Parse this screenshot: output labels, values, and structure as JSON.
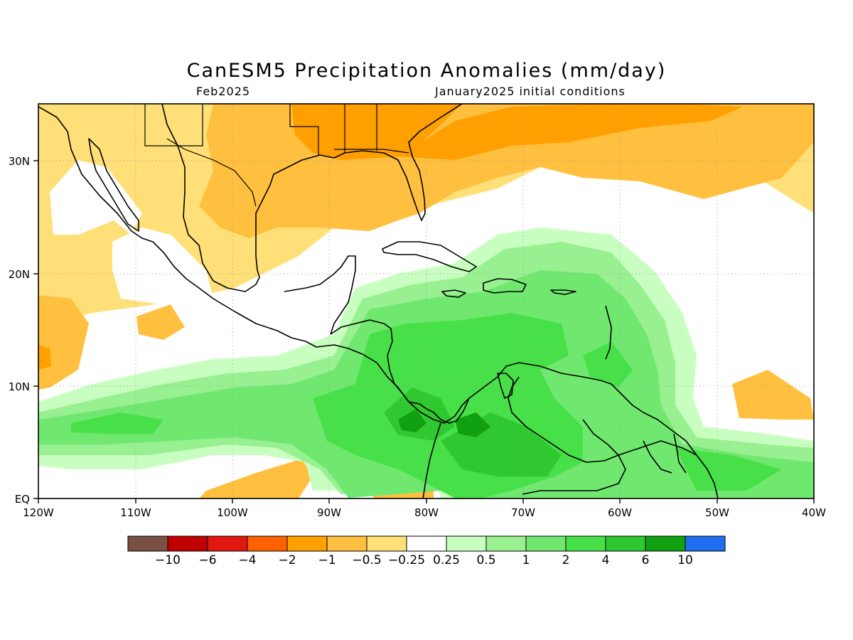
{
  "header": {
    "title": "CanESM5 Precipitation Anomalies (mm/day)",
    "subtitle_left": "Feb2025",
    "subtitle_right": "January2025 initial conditions"
  },
  "axes": {
    "x_ticks": [
      "120W",
      "110W",
      "100W",
      "90W",
      "80W",
      "70W",
      "60W",
      "50W",
      "40W"
    ],
    "y_ticks": [
      "30N",
      "20N",
      "10N",
      "EQ"
    ]
  },
  "colorbar": {
    "colors": [
      "#7b5044",
      "#c00000",
      "#e01810",
      "#ff6000",
      "#ffa000",
      "#ffc040",
      "#ffe078",
      "#ffffff",
      "#c8ffc0",
      "#98f090",
      "#70e870",
      "#48e048",
      "#30c830",
      "#10a010",
      "#1e6ef0"
    ],
    "labels": [
      "−10",
      "−6",
      "−4",
      "−2",
      "−1",
      "−0.5",
      "−0.25",
      "0.25",
      "0.5",
      "1",
      "2",
      "4",
      "6",
      "10"
    ]
  },
  "colors": {
    "land_outline": "#000000",
    "grid_dots": "#999999"
  }
}
